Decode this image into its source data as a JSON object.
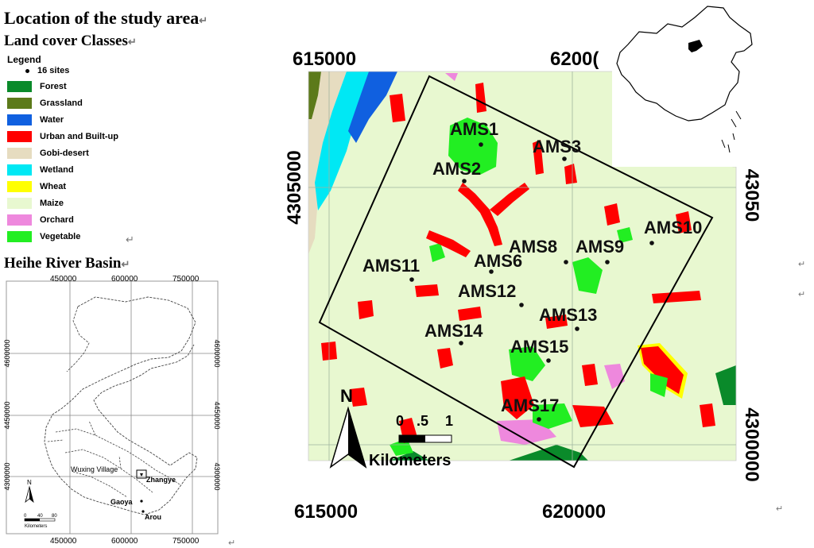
{
  "page": {
    "title": "Location of the study area",
    "subtitle_land_cover": "Land cover Classes",
    "subtitle_basin": "Heihe River Basin",
    "paragraph_mark": "↵"
  },
  "legend": {
    "title": "Legend",
    "sites_label": "16 sites",
    "classes": [
      {
        "label": "Forest",
        "color": "#0a8a2a"
      },
      {
        "label": "Grassland",
        "color": "#5c7a1a"
      },
      {
        "label": "Water",
        "color": "#1060e0"
      },
      {
        "label": "Urban and Built-up",
        "color": "#ff0000"
      },
      {
        "label": "Gobi-desert",
        "color": "#e6dcc0"
      },
      {
        "label": "Wetland",
        "color": "#00e8f4"
      },
      {
        "label": "Wheat",
        "color": "#ffff00"
      },
      {
        "label": "Maize",
        "color": "#e8f8d0"
      },
      {
        "label": "Orchard",
        "color": "#ee88dd"
      },
      {
        "label": "Vegetable",
        "color": "#22ee22"
      }
    ]
  },
  "basin_map": {
    "x_ticks": [
      "450000",
      "600000",
      "750000"
    ],
    "y_ticks": [
      "4600000",
      "4450000",
      "4300000"
    ],
    "places": [
      "Wuxing Village",
      "Zhangye",
      "Gaoya",
      "Arou"
    ],
    "north_label": "N",
    "scale_ticks": [
      "0",
      "40",
      "80"
    ],
    "scale_unit": "Kilometers"
  },
  "study_map": {
    "x_ticks_top": [
      "615000",
      "6200("
    ],
    "x_ticks_bottom": [
      "615000",
      "620000"
    ],
    "y_ticks_left": [
      "4305000"
    ],
    "y_ticks_right": [
      "43050",
      "4300000"
    ],
    "sites": [
      {
        "label": "AMS1"
      },
      {
        "label": "AMS2"
      },
      {
        "label": "AMS3"
      },
      {
        "label": "AMS6"
      },
      {
        "label": "AMS8"
      },
      {
        "label": "AMS9"
      },
      {
        "label": "AMS10"
      },
      {
        "label": "AMS11"
      },
      {
        "label": "AMS12"
      },
      {
        "label": "AMS13"
      },
      {
        "label": "AMS14"
      },
      {
        "label": "AMS15"
      },
      {
        "label": "AMS17"
      }
    ],
    "north_label": "N",
    "scale_ticks": [
      "0",
      ".5",
      "1"
    ],
    "scale_unit": "Kilometers"
  }
}
